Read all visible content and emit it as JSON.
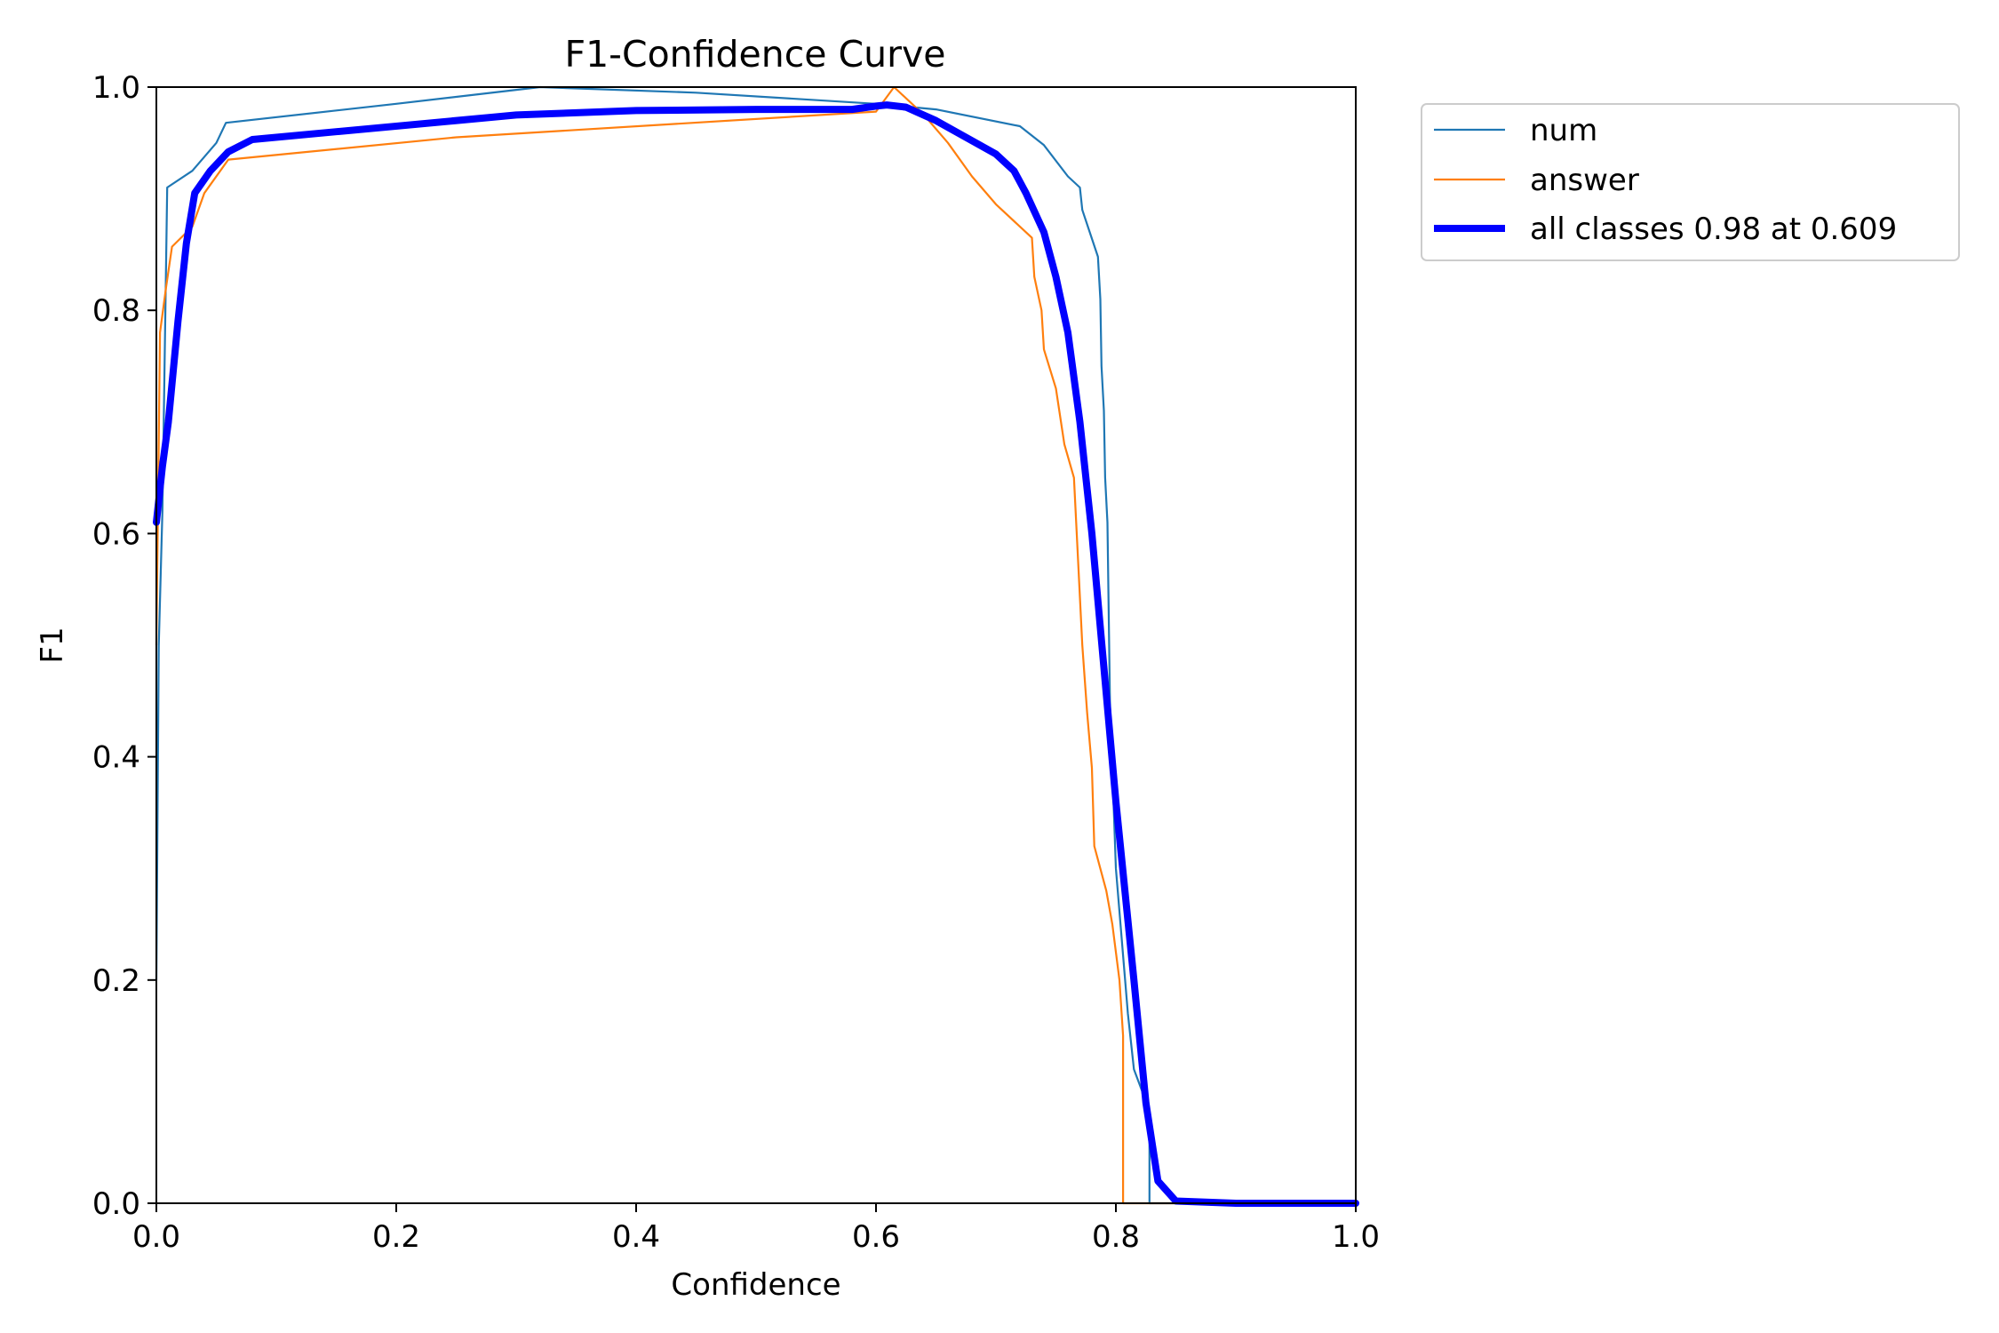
{
  "chart_data": {
    "type": "line",
    "title": "F1-Confidence Curve",
    "xlabel": "Confidence",
    "ylabel": "F1",
    "xlim": [
      0,
      1
    ],
    "ylim": [
      0,
      1
    ],
    "xticks": [
      "0.0",
      "0.2",
      "0.4",
      "0.6",
      "0.8",
      "1.0"
    ],
    "yticks": [
      "0.0",
      "0.2",
      "0.4",
      "0.6",
      "0.8",
      "1.0"
    ],
    "grid": false,
    "legend_position": "outside-top-right",
    "series": [
      {
        "name": "num",
        "color": "#1f77b4",
        "width": "thin",
        "points": [
          [
            0.0,
            0.2
          ],
          [
            0.002,
            0.5
          ],
          [
            0.005,
            0.62
          ],
          [
            0.009,
            0.91
          ],
          [
            0.03,
            0.925
          ],
          [
            0.05,
            0.95
          ],
          [
            0.058,
            0.968
          ],
          [
            0.2,
            0.985
          ],
          [
            0.32,
            1.0
          ],
          [
            0.45,
            0.995
          ],
          [
            0.6,
            0.985
          ],
          [
            0.65,
            0.98
          ],
          [
            0.72,
            0.965
          ],
          [
            0.74,
            0.948
          ],
          [
            0.76,
            0.92
          ],
          [
            0.77,
            0.91
          ],
          [
            0.772,
            0.89
          ],
          [
            0.785,
            0.848
          ],
          [
            0.787,
            0.81
          ],
          [
            0.788,
            0.75
          ],
          [
            0.79,
            0.71
          ],
          [
            0.791,
            0.65
          ],
          [
            0.793,
            0.61
          ],
          [
            0.795,
            0.45
          ],
          [
            0.8,
            0.3
          ],
          [
            0.81,
            0.17
          ],
          [
            0.815,
            0.12
          ],
          [
            0.822,
            0.1
          ],
          [
            0.826,
            0.07
          ],
          [
            0.828,
            0.06
          ],
          [
            0.828,
            0.0
          ],
          [
            1.0,
            0.0
          ]
        ]
      },
      {
        "name": "answer",
        "color": "#ff7f0e",
        "width": "thin",
        "points": [
          [
            0.0,
            0.5
          ],
          [
            0.003,
            0.78
          ],
          [
            0.008,
            0.82
          ],
          [
            0.013,
            0.857
          ],
          [
            0.03,
            0.875
          ],
          [
            0.04,
            0.905
          ],
          [
            0.06,
            0.935
          ],
          [
            0.25,
            0.955
          ],
          [
            0.6,
            0.978
          ],
          [
            0.615,
            1.0
          ],
          [
            0.64,
            0.975
          ],
          [
            0.66,
            0.95
          ],
          [
            0.68,
            0.92
          ],
          [
            0.7,
            0.895
          ],
          [
            0.73,
            0.865
          ],
          [
            0.732,
            0.83
          ],
          [
            0.738,
            0.8
          ],
          [
            0.74,
            0.765
          ],
          [
            0.75,
            0.73
          ],
          [
            0.757,
            0.68
          ],
          [
            0.765,
            0.65
          ],
          [
            0.772,
            0.5
          ],
          [
            0.776,
            0.44
          ],
          [
            0.78,
            0.39
          ],
          [
            0.782,
            0.32
          ],
          [
            0.792,
            0.28
          ],
          [
            0.797,
            0.25
          ],
          [
            0.803,
            0.2
          ],
          [
            0.806,
            0.15
          ],
          [
            0.806,
            0.0
          ],
          [
            1.0,
            0.0
          ]
        ]
      },
      {
        "name": "all classes 0.98 at 0.609",
        "color": "#0000ff",
        "width": "thick",
        "points": [
          [
            0.0,
            0.61
          ],
          [
            0.005,
            0.66
          ],
          [
            0.01,
            0.7
          ],
          [
            0.018,
            0.79
          ],
          [
            0.025,
            0.86
          ],
          [
            0.032,
            0.905
          ],
          [
            0.045,
            0.925
          ],
          [
            0.06,
            0.942
          ],
          [
            0.08,
            0.953
          ],
          [
            0.15,
            0.96
          ],
          [
            0.3,
            0.975
          ],
          [
            0.4,
            0.979
          ],
          [
            0.5,
            0.98
          ],
          [
            0.58,
            0.98
          ],
          [
            0.6,
            0.983
          ],
          [
            0.609,
            0.984
          ],
          [
            0.625,
            0.982
          ],
          [
            0.65,
            0.97
          ],
          [
            0.7,
            0.94
          ],
          [
            0.715,
            0.925
          ],
          [
            0.725,
            0.905
          ],
          [
            0.74,
            0.87
          ],
          [
            0.75,
            0.83
          ],
          [
            0.76,
            0.78
          ],
          [
            0.77,
            0.7
          ],
          [
            0.78,
            0.6
          ],
          [
            0.8,
            0.36
          ],
          [
            0.815,
            0.2
          ],
          [
            0.825,
            0.09
          ],
          [
            0.835,
            0.02
          ],
          [
            0.85,
            0.002
          ],
          [
            0.9,
            0.0
          ],
          [
            1.0,
            0.0
          ]
        ]
      }
    ]
  }
}
